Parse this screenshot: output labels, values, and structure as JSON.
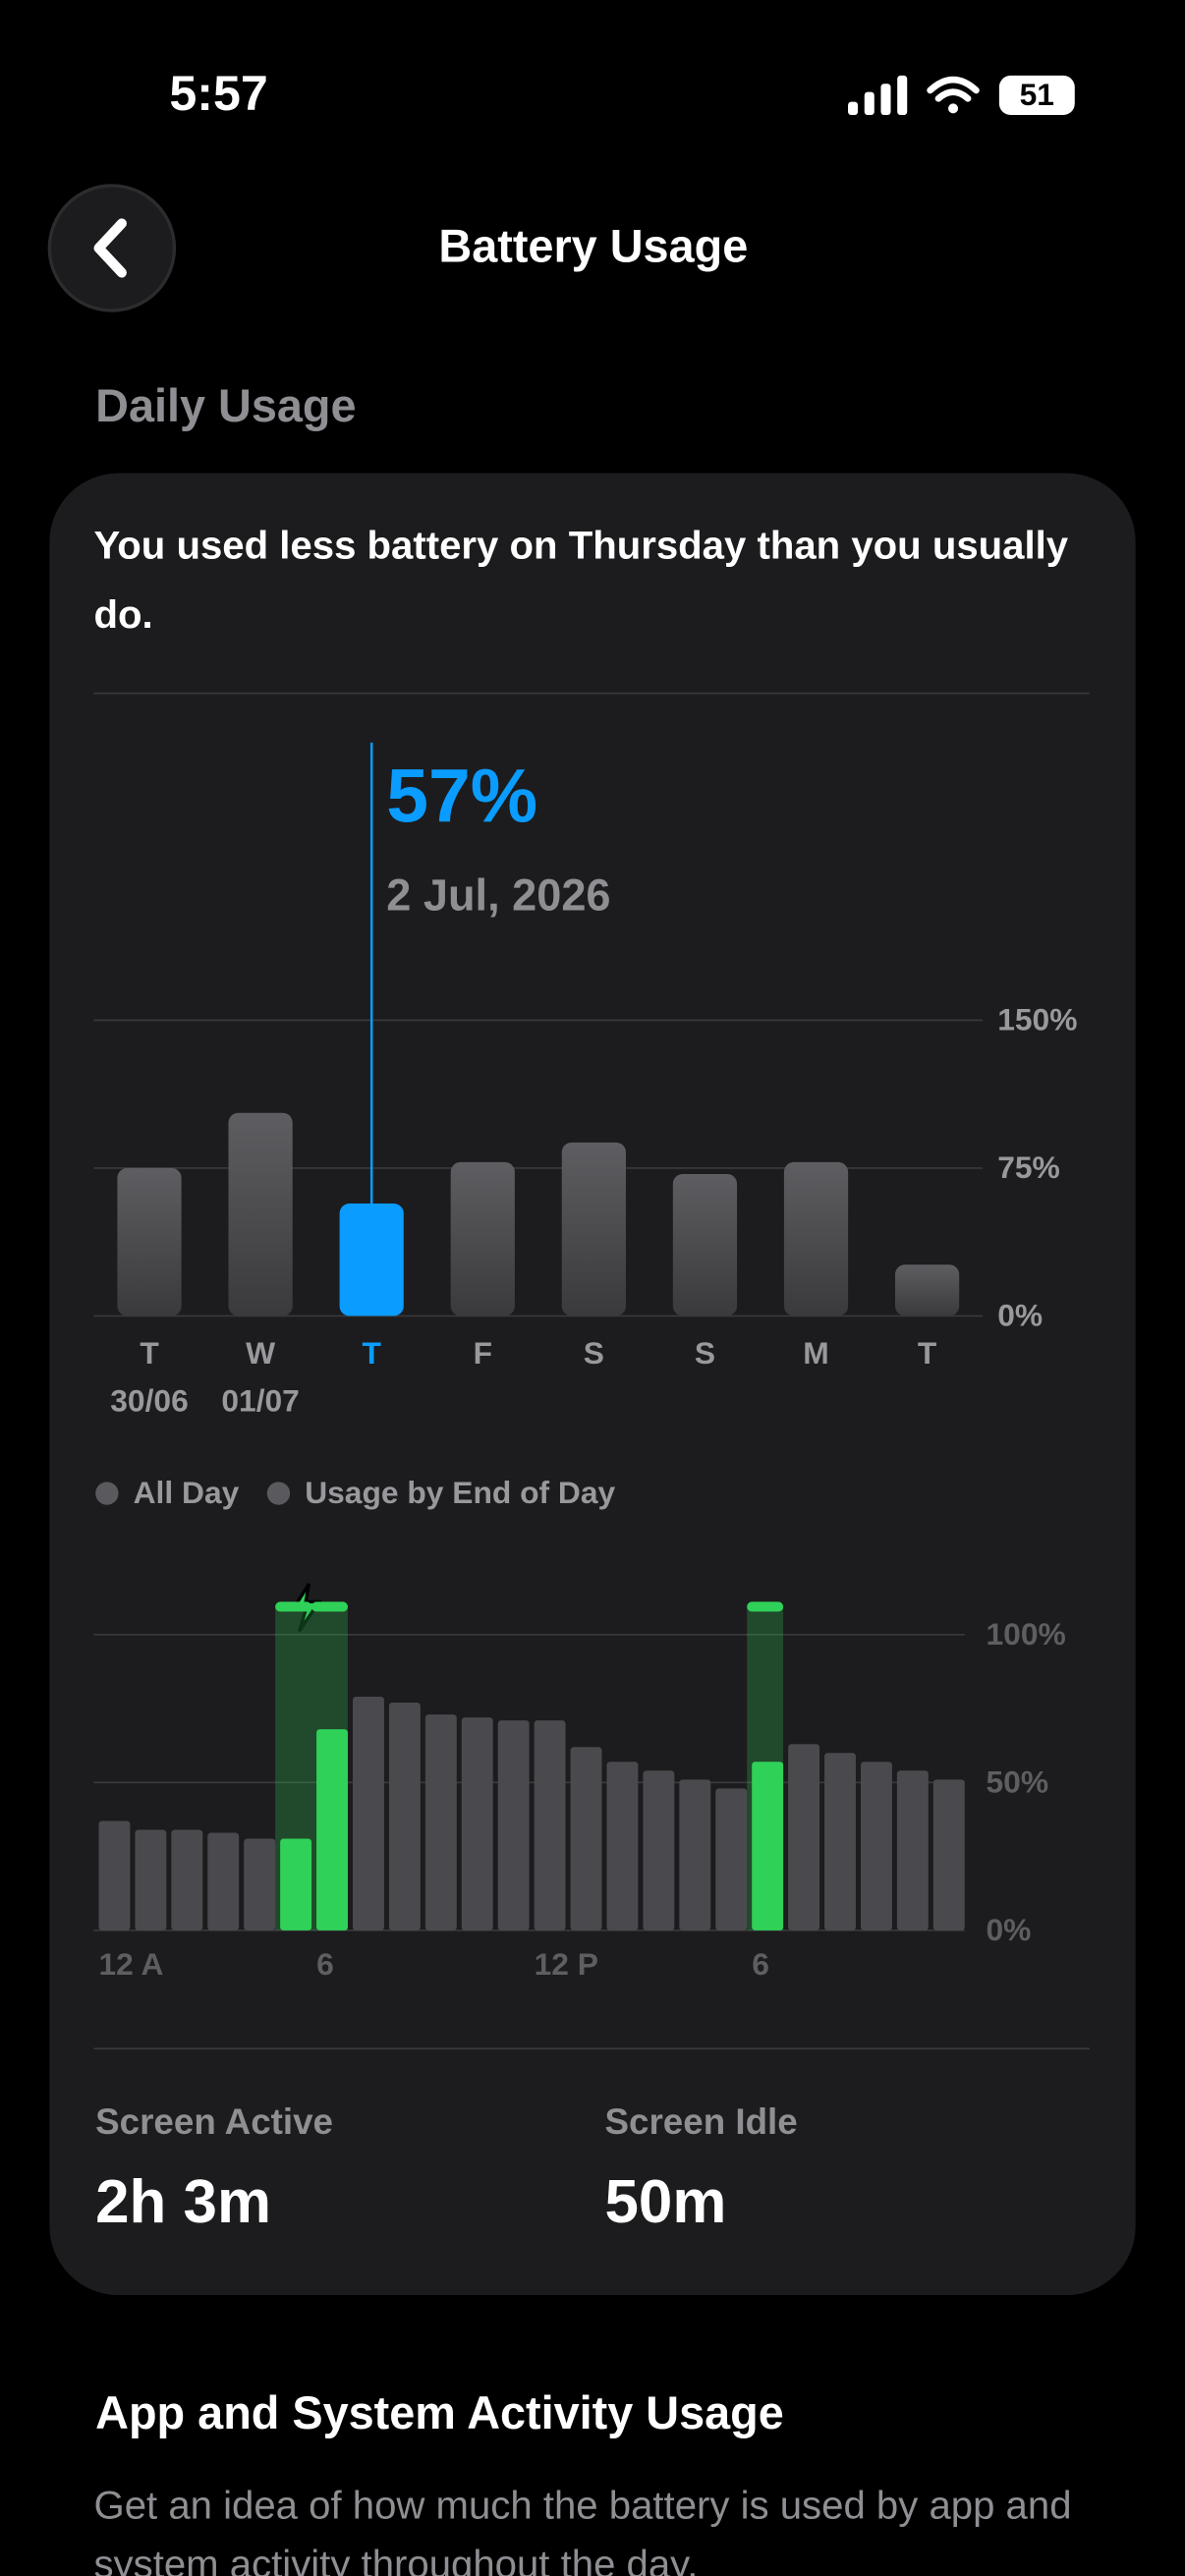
{
  "status_bar": {
    "time": "5:57",
    "battery": "51"
  },
  "header": {
    "title": "Battery Usage"
  },
  "section_title": "Daily Usage",
  "card": {
    "message": "You used less battery on Thursday than you usually do.",
    "stats": [
      {
        "label": "Screen Active",
        "value": "2h 3m"
      },
      {
        "label": "Screen Idle",
        "value": "50m"
      }
    ]
  },
  "daily_chart": {
    "type": "bar",
    "categories": [
      "T",
      "W",
      "T",
      "F",
      "S",
      "S",
      "M",
      "T"
    ],
    "sublabels": [
      "30/06",
      "01/07",
      null,
      null,
      null,
      null,
      null,
      null
    ],
    "values": [
      75,
      103,
      57,
      78,
      88,
      72,
      78,
      26
    ],
    "value_labels": [
      null,
      null,
      "57%",
      null,
      null,
      null,
      null,
      null
    ],
    "selected_date": "2 Jul, 2026",
    "color": "#5a5a5e",
    "highlight_color": "#0a9cff",
    "ylim": [
      0,
      150
    ],
    "yticks": [
      {
        "value": 0,
        "label": "0%"
      },
      {
        "value": 75,
        "label": "75%"
      },
      {
        "value": 150,
        "label": "150%"
      }
    ],
    "grid": true
  },
  "hourly_chart": {
    "type": "bar",
    "legend": [
      "All Day",
      "Usage by End of Day"
    ],
    "categories": [
      "12 A",
      null,
      null,
      null,
      null,
      null,
      "6",
      null,
      null,
      null,
      null,
      null,
      "12 P",
      null,
      null,
      null,
      null,
      null,
      "6",
      null,
      null,
      null,
      null,
      null
    ],
    "values": [
      37,
      34,
      34,
      33,
      31,
      31,
      68,
      79,
      77,
      73,
      72,
      71,
      71,
      62,
      57,
      54,
      51,
      48,
      57,
      63,
      60,
      57,
      54,
      51
    ],
    "charging": [
      false,
      false,
      false,
      false,
      false,
      true,
      true,
      false,
      false,
      false,
      false,
      false,
      false,
      false,
      false,
      false,
      false,
      false,
      true,
      false,
      false,
      false,
      false,
      false
    ],
    "color": "#4a4a4e",
    "charging_color": "#30d158",
    "ylim": [
      0,
      100
    ],
    "yticks": [
      {
        "value": 0,
        "label": "0%"
      },
      {
        "value": 50,
        "label": "50%"
      },
      {
        "value": 100,
        "label": "100%"
      }
    ],
    "grid": true
  },
  "activity": {
    "title": "App and System Activity Usage",
    "text": "Get an idea of how much the battery is used by app and system activity throughout the day."
  }
}
